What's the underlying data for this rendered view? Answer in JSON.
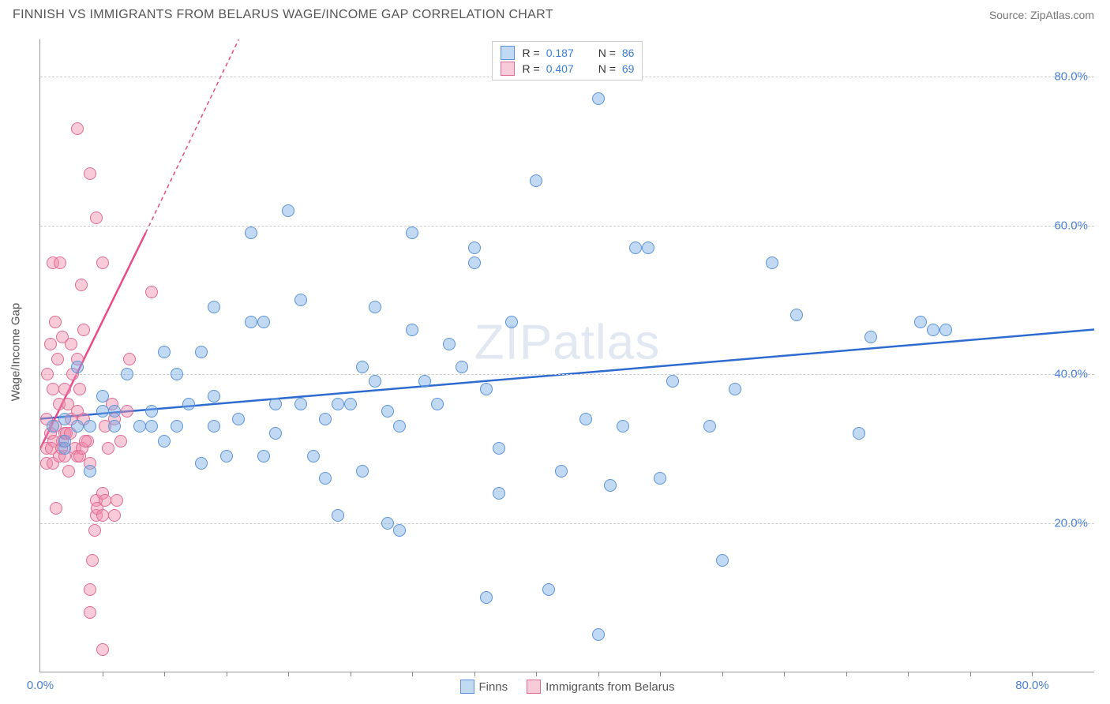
{
  "title": "FINNISH VS IMMIGRANTS FROM BELARUS WAGE/INCOME GAP CORRELATION CHART",
  "source": "Source: ZipAtlas.com",
  "watermark": "ZIPatlas",
  "y_axis_label": "Wage/Income Gap",
  "axis": {
    "x_min": 0,
    "x_max": 85,
    "y_min": 0,
    "y_max": 85,
    "y_ticks": [
      20,
      40,
      60,
      80
    ],
    "y_tick_labels": [
      "20.0%",
      "40.0%",
      "60.0%",
      "80.0%"
    ],
    "x_ticks_minor": [
      5,
      10,
      15,
      20,
      25,
      30,
      35,
      40,
      45,
      50,
      55,
      60,
      65,
      70,
      75,
      80
    ],
    "x_label_min": "0.0%",
    "x_label_max": "80.0%",
    "tick_label_color": "#4a7fd8",
    "grid_color": "#cccccc"
  },
  "series": {
    "finns": {
      "label": "Finns",
      "fill": "rgba(120,170,230,0.45)",
      "stroke": "#5b93d6",
      "r": 8,
      "R_value": "0.187",
      "N_value": "86",
      "trend": {
        "x1": 0,
        "y1": 34,
        "x2": 85,
        "y2": 46,
        "color": "#2e6bd0",
        "width": 2.5,
        "dash": ""
      },
      "points": [
        [
          1,
          33
        ],
        [
          2,
          34
        ],
        [
          2,
          30
        ],
        [
          2,
          31
        ],
        [
          3,
          33
        ],
        [
          3,
          41
        ],
        [
          4,
          27
        ],
        [
          4,
          33
        ],
        [
          5,
          35
        ],
        [
          5,
          37
        ],
        [
          6,
          33
        ],
        [
          7,
          40
        ],
        [
          9,
          33
        ],
        [
          9,
          35
        ],
        [
          10,
          43
        ],
        [
          11,
          33
        ],
        [
          11,
          40
        ],
        [
          12,
          36
        ],
        [
          13,
          28
        ],
        [
          13,
          43
        ],
        [
          14,
          33
        ],
        [
          14,
          37
        ],
        [
          14,
          49
        ],
        [
          15,
          29
        ],
        [
          16,
          34
        ],
        [
          17,
          59
        ],
        [
          17,
          47
        ],
        [
          18,
          29
        ],
        [
          18,
          47
        ],
        [
          19,
          36
        ],
        [
          20,
          62
        ],
        [
          21,
          36
        ],
        [
          21,
          50
        ],
        [
          22,
          29
        ],
        [
          23,
          34
        ],
        [
          23,
          26
        ],
        [
          24,
          36
        ],
        [
          24,
          21
        ],
        [
          25,
          36
        ],
        [
          26,
          41
        ],
        [
          26,
          27
        ],
        [
          27,
          39
        ],
        [
          27,
          49
        ],
        [
          28,
          35
        ],
        [
          28,
          20
        ],
        [
          29,
          19
        ],
        [
          29,
          33
        ],
        [
          30,
          59
        ],
        [
          30,
          46
        ],
        [
          31,
          39
        ],
        [
          32,
          36
        ],
        [
          33,
          44
        ],
        [
          34,
          41
        ],
        [
          35,
          55
        ],
        [
          35,
          57
        ],
        [
          36,
          38
        ],
        [
          36,
          10
        ],
        [
          37,
          24
        ],
        [
          37,
          30
        ],
        [
          38,
          47
        ],
        [
          40,
          66
        ],
        [
          41,
          11
        ],
        [
          42,
          27
        ],
        [
          44,
          34
        ],
        [
          45,
          5
        ],
        [
          45,
          77
        ],
        [
          46,
          25
        ],
        [
          47,
          33
        ],
        [
          48,
          57
        ],
        [
          49,
          57
        ],
        [
          50,
          26
        ],
        [
          51,
          39
        ],
        [
          54,
          33
        ],
        [
          55,
          15
        ],
        [
          56,
          38
        ],
        [
          59,
          55
        ],
        [
          61,
          48
        ],
        [
          66,
          32
        ],
        [
          67,
          45
        ],
        [
          71,
          47
        ],
        [
          72,
          46
        ],
        [
          73,
          46
        ],
        [
          19,
          32
        ],
        [
          10,
          31
        ],
        [
          8,
          33
        ],
        [
          6,
          35
        ]
      ]
    },
    "belarus": {
      "label": "Immigrants from Belarus",
      "fill": "rgba(240,140,170,0.45)",
      "stroke": "#e06b95",
      "r": 8,
      "R_value": "0.407",
      "N_value": "69",
      "trend_solid": {
        "x1": 0,
        "y1": 30,
        "x2": 8.5,
        "y2": 59,
        "color": "#e84a8a",
        "width": 2.5
      },
      "trend_dash": {
        "x1": 8.5,
        "y1": 59,
        "x2": 16,
        "y2": 85,
        "color": "#e84a8a",
        "width": 1.5,
        "dash": "5,4"
      },
      "points": [
        [
          0.5,
          28
        ],
        [
          0.5,
          30
        ],
        [
          0.5,
          34
        ],
        [
          0.6,
          40
        ],
        [
          0.8,
          44
        ],
        [
          0.8,
          32
        ],
        [
          1,
          28
        ],
        [
          1,
          38
        ],
        [
          1,
          55
        ],
        [
          1.2,
          33
        ],
        [
          1.2,
          47
        ],
        [
          1.3,
          22
        ],
        [
          1.4,
          42
        ],
        [
          1.5,
          29
        ],
        [
          1.5,
          36
        ],
        [
          1.6,
          55
        ],
        [
          1.8,
          45
        ],
        [
          1.8,
          31
        ],
        [
          2,
          32
        ],
        [
          2,
          38
        ],
        [
          2,
          29
        ],
        [
          2.2,
          36
        ],
        [
          2.3,
          27
        ],
        [
          2.5,
          44
        ],
        [
          2.5,
          34
        ],
        [
          2.6,
          40
        ],
        [
          2.8,
          30
        ],
        [
          3,
          35
        ],
        [
          3,
          42
        ],
        [
          3,
          29
        ],
        [
          3.2,
          38
        ],
        [
          3.3,
          52
        ],
        [
          3.5,
          46
        ],
        [
          3.5,
          34
        ],
        [
          3.8,
          31
        ],
        [
          4,
          28
        ],
        [
          4,
          11
        ],
        [
          4,
          8
        ],
        [
          4.2,
          15
        ],
        [
          4.4,
          19
        ],
        [
          4.5,
          23
        ],
        [
          4.5,
          21
        ],
        [
          4.6,
          22
        ],
        [
          5,
          24
        ],
        [
          5,
          21
        ],
        [
          5,
          3
        ],
        [
          5.2,
          33
        ],
        [
          5.5,
          30
        ],
        [
          5.8,
          36
        ],
        [
          6,
          34
        ],
        [
          6,
          21
        ],
        [
          6.2,
          23
        ],
        [
          6.5,
          31
        ],
        [
          3,
          73
        ],
        [
          4,
          67
        ],
        [
          4.5,
          61
        ],
        [
          5,
          55
        ],
        [
          5.2,
          23
        ],
        [
          7,
          35
        ],
        [
          7.2,
          42
        ],
        [
          3.2,
          29
        ],
        [
          3.4,
          30
        ],
        [
          3.6,
          31
        ],
        [
          2.1,
          32
        ],
        [
          2.4,
          32
        ],
        [
          1.7,
          30
        ],
        [
          1.1,
          31
        ],
        [
          0.9,
          30
        ],
        [
          9,
          51
        ]
      ]
    }
  },
  "legend_top": {
    "r_label": "R =",
    "n_label": "N ="
  }
}
